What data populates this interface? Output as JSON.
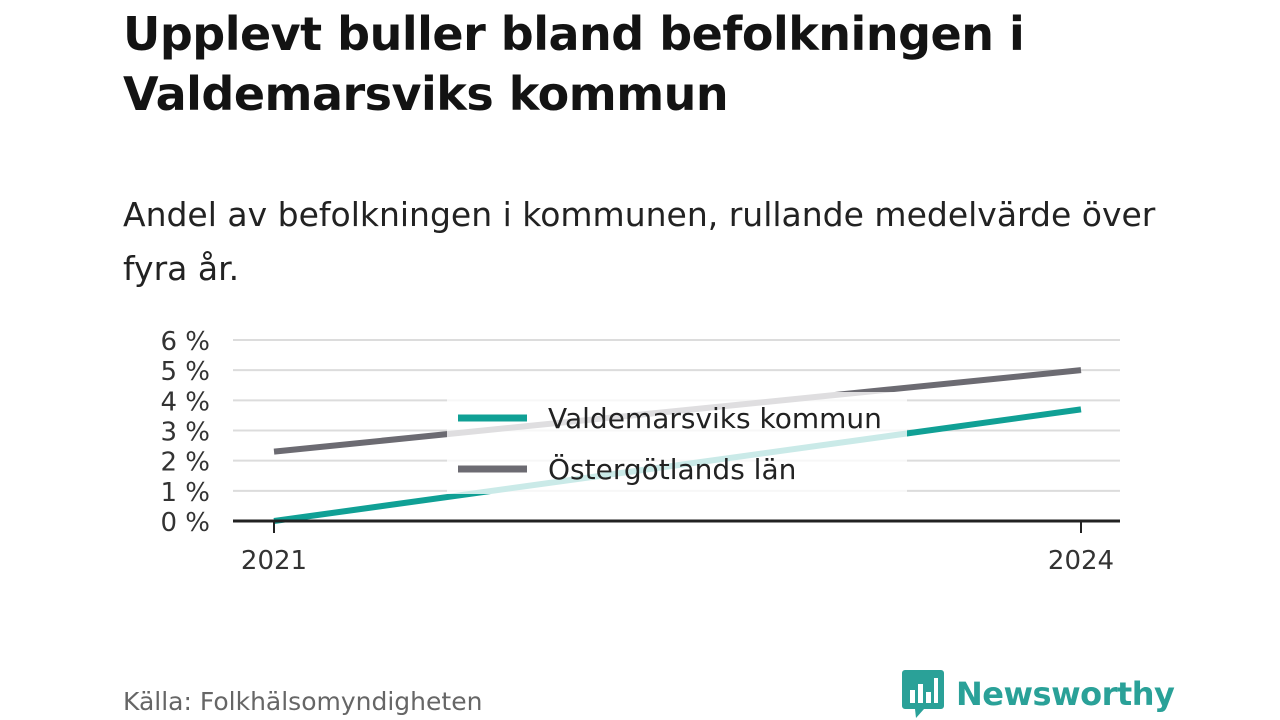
{
  "title": "Upplevt buller bland befolkningen i Valdemarsviks kommun",
  "subtitle": "Andel av befolkningen i kommunen, rullande medelvärde över fyra år.",
  "source": "Källa: Folkhälsomyndigheten",
  "brand": {
    "name": "Newsworthy",
    "color": "#2aa198",
    "icon": "newsworthy-logo-icon"
  },
  "chart_data": {
    "type": "line",
    "x": [
      "2021",
      "2024"
    ],
    "ylim": [
      0,
      6
    ],
    "yticks": [
      0,
      1,
      2,
      3,
      4,
      5,
      6
    ],
    "ytick_labels": [
      "0 %",
      "1 %",
      "2 %",
      "3 %",
      "4 %",
      "5 %",
      "6 %"
    ],
    "xtick_labels": [
      "2021",
      "2024"
    ],
    "grid": true,
    "legend_position": "center",
    "series": [
      {
        "name": "Valdemarsviks kommun",
        "values": [
          0.0,
          3.7
        ],
        "color": "#10a095"
      },
      {
        "name": "Östergötlands län",
        "values": [
          2.3,
          5.0
        ],
        "color": "#6c6b72"
      }
    ],
    "xlabel": "",
    "ylabel": ""
  }
}
